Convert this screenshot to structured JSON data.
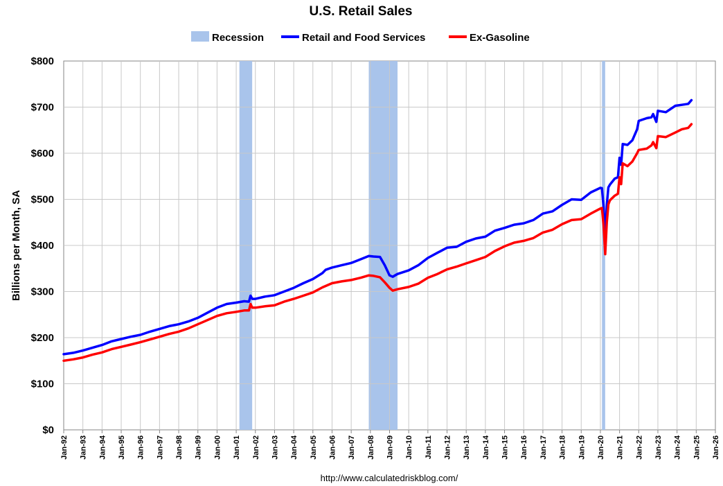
{
  "chart_data": {
    "type": "line",
    "title": "U.S. Retail Sales",
    "ylabel": "Billions per Month, SA",
    "xlabel": "",
    "ylim": [
      0,
      800
    ],
    "y_ticks": [
      0,
      100,
      200,
      300,
      400,
      500,
      600,
      700,
      800
    ],
    "y_tick_labels": [
      "$0",
      "$100",
      "$200",
      "$300",
      "$400",
      "$500",
      "$600",
      "$700",
      "$800"
    ],
    "x_range": [
      "1992-01",
      "2026-01"
    ],
    "x_tick_labels": [
      "Jan-92",
      "Jan-93",
      "Jan-94",
      "Jan-95",
      "Jan-96",
      "Jan-97",
      "Jan-98",
      "Jan-99",
      "Jan-00",
      "Jan-01",
      "Jan-02",
      "Jan-03",
      "Jan-04",
      "Jan-05",
      "Jan-06",
      "Jan-07",
      "Jan-08",
      "Jan-09",
      "Jan-10",
      "Jan-11",
      "Jan-12",
      "Jan-13",
      "Jan-14",
      "Jan-15",
      "Jan-16",
      "Jan-17",
      "Jan-18",
      "Jan-19",
      "Jan-20",
      "Jan-21",
      "Jan-22",
      "Jan-23",
      "Jan-24",
      "Jan-25",
      "Jan-26"
    ],
    "grid": true,
    "legend_position": "top",
    "recessions": [
      {
        "start": "2001-03",
        "end": "2001-11"
      },
      {
        "start": "2007-12",
        "end": "2009-06"
      },
      {
        "start": "2020-02",
        "end": "2020-04"
      }
    ],
    "series": [
      {
        "name": "Recession",
        "kind": "band",
        "color": "#a9c4eb"
      },
      {
        "name": "Retail and Food Services",
        "kind": "line",
        "color": "#0000ff",
        "points": [
          [
            "1992-01",
            164
          ],
          [
            "1992-07",
            167
          ],
          [
            "1993-01",
            172
          ],
          [
            "1993-07",
            178
          ],
          [
            "1994-01",
            184
          ],
          [
            "1994-07",
            192
          ],
          [
            "1995-01",
            197
          ],
          [
            "1995-07",
            202
          ],
          [
            "1996-01",
            206
          ],
          [
            "1996-07",
            213
          ],
          [
            "1997-01",
            219
          ],
          [
            "1997-07",
            225
          ],
          [
            "1998-01",
            229
          ],
          [
            "1998-07",
            235
          ],
          [
            "1999-01",
            243
          ],
          [
            "1999-07",
            254
          ],
          [
            "2000-01",
            265
          ],
          [
            "2000-07",
            273
          ],
          [
            "2001-01",
            276
          ],
          [
            "2001-06",
            279
          ],
          [
            "2001-09",
            278
          ],
          [
            "2001-10",
            291
          ],
          [
            "2001-11",
            284
          ],
          [
            "2002-01",
            284
          ],
          [
            "2002-07",
            289
          ],
          [
            "2003-01",
            292
          ],
          [
            "2003-07",
            300
          ],
          [
            "2004-01",
            308
          ],
          [
            "2004-07",
            318
          ],
          [
            "2005-01",
            327
          ],
          [
            "2005-07",
            340
          ],
          [
            "2005-09",
            347
          ],
          [
            "2006-01",
            352
          ],
          [
            "2006-07",
            357
          ],
          [
            "2007-01",
            362
          ],
          [
            "2007-07",
            370
          ],
          [
            "2007-12",
            377
          ],
          [
            "2008-03",
            376
          ],
          [
            "2008-07",
            375
          ],
          [
            "2008-10",
            357
          ],
          [
            "2009-01",
            335
          ],
          [
            "2009-03",
            332
          ],
          [
            "2009-06",
            338
          ],
          [
            "2010-01",
            346
          ],
          [
            "2010-07",
            357
          ],
          [
            "2011-01",
            373
          ],
          [
            "2011-07",
            384
          ],
          [
            "2012-01",
            395
          ],
          [
            "2012-07",
            397
          ],
          [
            "2013-01",
            408
          ],
          [
            "2013-07",
            415
          ],
          [
            "2014-01",
            419
          ],
          [
            "2014-07",
            432
          ],
          [
            "2015-01",
            438
          ],
          [
            "2015-07",
            445
          ],
          [
            "2016-01",
            448
          ],
          [
            "2016-07",
            455
          ],
          [
            "2017-01",
            469
          ],
          [
            "2017-07",
            474
          ],
          [
            "2018-01",
            488
          ],
          [
            "2018-07",
            500
          ],
          [
            "2019-01",
            499
          ],
          [
            "2019-07",
            515
          ],
          [
            "2020-01",
            525
          ],
          [
            "2020-02",
            524
          ],
          [
            "2020-03",
            483
          ],
          [
            "2020-04",
            411
          ],
          [
            "2020-05",
            488
          ],
          [
            "2020-06",
            526
          ],
          [
            "2020-07",
            532
          ],
          [
            "2020-10",
            545
          ],
          [
            "2020-12",
            548
          ],
          [
            "2021-01",
            590
          ],
          [
            "2021-02",
            575
          ],
          [
            "2021-03",
            620
          ],
          [
            "2021-06",
            618
          ],
          [
            "2021-09",
            628
          ],
          [
            "2021-12",
            652
          ],
          [
            "2022-01",
            670
          ],
          [
            "2022-06",
            676
          ],
          [
            "2022-09",
            678
          ],
          [
            "2022-10",
            685
          ],
          [
            "2022-12",
            668
          ],
          [
            "2023-01",
            692
          ],
          [
            "2023-06",
            689
          ],
          [
            "2023-12",
            703
          ],
          [
            "2024-04",
            705
          ],
          [
            "2024-08",
            707
          ],
          [
            "2024-10",
            715
          ]
        ]
      },
      {
        "name": "Ex-Gasoline",
        "kind": "line",
        "color": "#ff0000",
        "points": [
          [
            "1992-01",
            150
          ],
          [
            "1992-07",
            153
          ],
          [
            "1993-01",
            157
          ],
          [
            "1993-07",
            163
          ],
          [
            "1994-01",
            168
          ],
          [
            "1994-07",
            175
          ],
          [
            "1995-01",
            180
          ],
          [
            "1995-07",
            185
          ],
          [
            "1996-01",
            190
          ],
          [
            "1996-07",
            196
          ],
          [
            "1997-01",
            202
          ],
          [
            "1997-07",
            208
          ],
          [
            "1998-01",
            213
          ],
          [
            "1998-07",
            220
          ],
          [
            "1999-01",
            229
          ],
          [
            "1999-07",
            238
          ],
          [
            "2000-01",
            247
          ],
          [
            "2000-07",
            253
          ],
          [
            "2001-01",
            256
          ],
          [
            "2001-06",
            259
          ],
          [
            "2001-09",
            259
          ],
          [
            "2001-10",
            273
          ],
          [
            "2001-11",
            265
          ],
          [
            "2002-01",
            265
          ],
          [
            "2002-07",
            268
          ],
          [
            "2003-01",
            270
          ],
          [
            "2003-07",
            278
          ],
          [
            "2004-01",
            284
          ],
          [
            "2004-07",
            291
          ],
          [
            "2005-01",
            298
          ],
          [
            "2005-07",
            309
          ],
          [
            "2006-01",
            318
          ],
          [
            "2006-07",
            322
          ],
          [
            "2007-01",
            325
          ],
          [
            "2007-07",
            330
          ],
          [
            "2007-12",
            335
          ],
          [
            "2008-03",
            334
          ],
          [
            "2008-07",
            331
          ],
          [
            "2008-10",
            320
          ],
          [
            "2009-01",
            308
          ],
          [
            "2009-03",
            302
          ],
          [
            "2009-06",
            305
          ],
          [
            "2010-01",
            310
          ],
          [
            "2010-07",
            317
          ],
          [
            "2011-01",
            330
          ],
          [
            "2011-07",
            338
          ],
          [
            "2012-01",
            348
          ],
          [
            "2012-07",
            354
          ],
          [
            "2013-01",
            361
          ],
          [
            "2013-07",
            368
          ],
          [
            "2014-01",
            375
          ],
          [
            "2014-07",
            388
          ],
          [
            "2015-01",
            398
          ],
          [
            "2015-07",
            406
          ],
          [
            "2016-01",
            410
          ],
          [
            "2016-07",
            416
          ],
          [
            "2017-01",
            428
          ],
          [
            "2017-07",
            434
          ],
          [
            "2018-01",
            446
          ],
          [
            "2018-07",
            455
          ],
          [
            "2019-01",
            457
          ],
          [
            "2019-07",
            469
          ],
          [
            "2020-01",
            480
          ],
          [
            "2020-02",
            481
          ],
          [
            "2020-03",
            443
          ],
          [
            "2020-04",
            381
          ],
          [
            "2020-05",
            450
          ],
          [
            "2020-06",
            489
          ],
          [
            "2020-07",
            498
          ],
          [
            "2020-10",
            508
          ],
          [
            "2020-12",
            512
          ],
          [
            "2021-01",
            548
          ],
          [
            "2021-02",
            533
          ],
          [
            "2021-03",
            578
          ],
          [
            "2021-06",
            572
          ],
          [
            "2021-09",
            582
          ],
          [
            "2021-12",
            600
          ],
          [
            "2022-01",
            607
          ],
          [
            "2022-06",
            610
          ],
          [
            "2022-09",
            617
          ],
          [
            "2022-10",
            624
          ],
          [
            "2022-12",
            611
          ],
          [
            "2023-01",
            637
          ],
          [
            "2023-06",
            635
          ],
          [
            "2023-12",
            645
          ],
          [
            "2024-04",
            652
          ],
          [
            "2024-08",
            655
          ],
          [
            "2024-10",
            663
          ]
        ]
      }
    ]
  },
  "source_text": "http://www.calculatedriskblog.com/"
}
